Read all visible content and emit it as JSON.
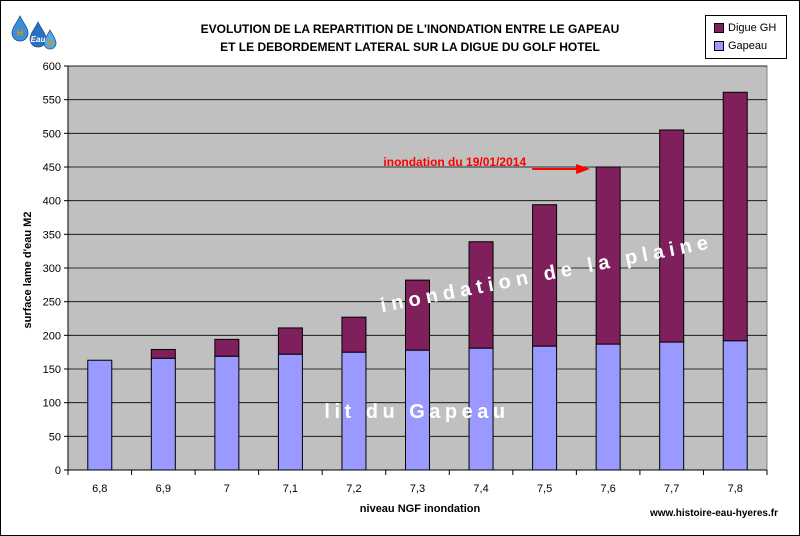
{
  "logo": {
    "text_top": "H",
    "text_mid": "Eau",
    "text_bottom": "H"
  },
  "chart_data": {
    "type": "bar",
    "stacked": true,
    "title_line1": "EVOLUTION DE LA REPARTITION DE L'INONDATION ENTRE LE GAPEAU",
    "title_line2": "ET LE DEBORDEMENT LATERAL SUR LA DIGUE DU GOLF HOTEL",
    "xlabel": "niveau NGF inondation",
    "ylabel": "surface lame d'eau M2",
    "categories": [
      "6,8",
      "6,9",
      "7",
      "7,1",
      "7,2",
      "7,3",
      "7,4",
      "7,5",
      "7,6",
      "7,7",
      "7,8"
    ],
    "series": [
      {
        "name": "Gapeau",
        "color": "#9999ff",
        "values": [
          163,
          166,
          169,
          172,
          175,
          178,
          181,
          184,
          187,
          190,
          192
        ]
      },
      {
        "name": "Digue GH",
        "color": "#7f1f5c",
        "values": [
          0,
          13,
          25,
          39,
          52,
          104,
          158,
          210,
          263,
          315,
          369
        ]
      }
    ],
    "legend_order": [
      "Digue GH",
      "Gapeau"
    ],
    "legend_position": "top-right",
    "ylim": [
      0,
      600
    ],
    "yticks": [
      0,
      50,
      100,
      150,
      200,
      250,
      300,
      350,
      400,
      450,
      500,
      550,
      600
    ],
    "grid": true,
    "plot_background": "#c0c0c0",
    "annotations": {
      "arrow_label": "inondation du 19/01/2014",
      "arrow_target_category": "7,6",
      "arrow_color": "#ff0000",
      "overlay_upper": "inondation de la plaine",
      "overlay_lower": "lit du Gapeau"
    }
  },
  "footer": {
    "website": "www.histoire-eau-hyeres.fr"
  }
}
